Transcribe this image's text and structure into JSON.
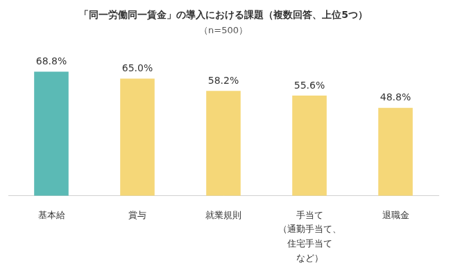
{
  "chart_data": {
    "type": "bar",
    "title": "「同一労働同一賃金」の導入における課題（複数回答、上位5つ）",
    "subtitle": "（n=500）",
    "categories": [
      "基本給",
      "賞与",
      "就業規則",
      [
        "手当て",
        "（通勤手当て、",
        "住宅手当て",
        "など）"
      ],
      "退職金"
    ],
    "values": [
      68.8,
      65.0,
      58.2,
      55.6,
      48.8
    ],
    "value_labels": [
      "68.8%",
      "65.0%",
      "58.2%",
      "55.6%",
      "48.8%"
    ],
    "colors": [
      "#5bbab5",
      "#f5d778",
      "#f5d778",
      "#f5d778",
      "#f5d778"
    ],
    "ylim": [
      0,
      80
    ],
    "grid": false,
    "data_labels": true,
    "tick_labels": "x"
  }
}
